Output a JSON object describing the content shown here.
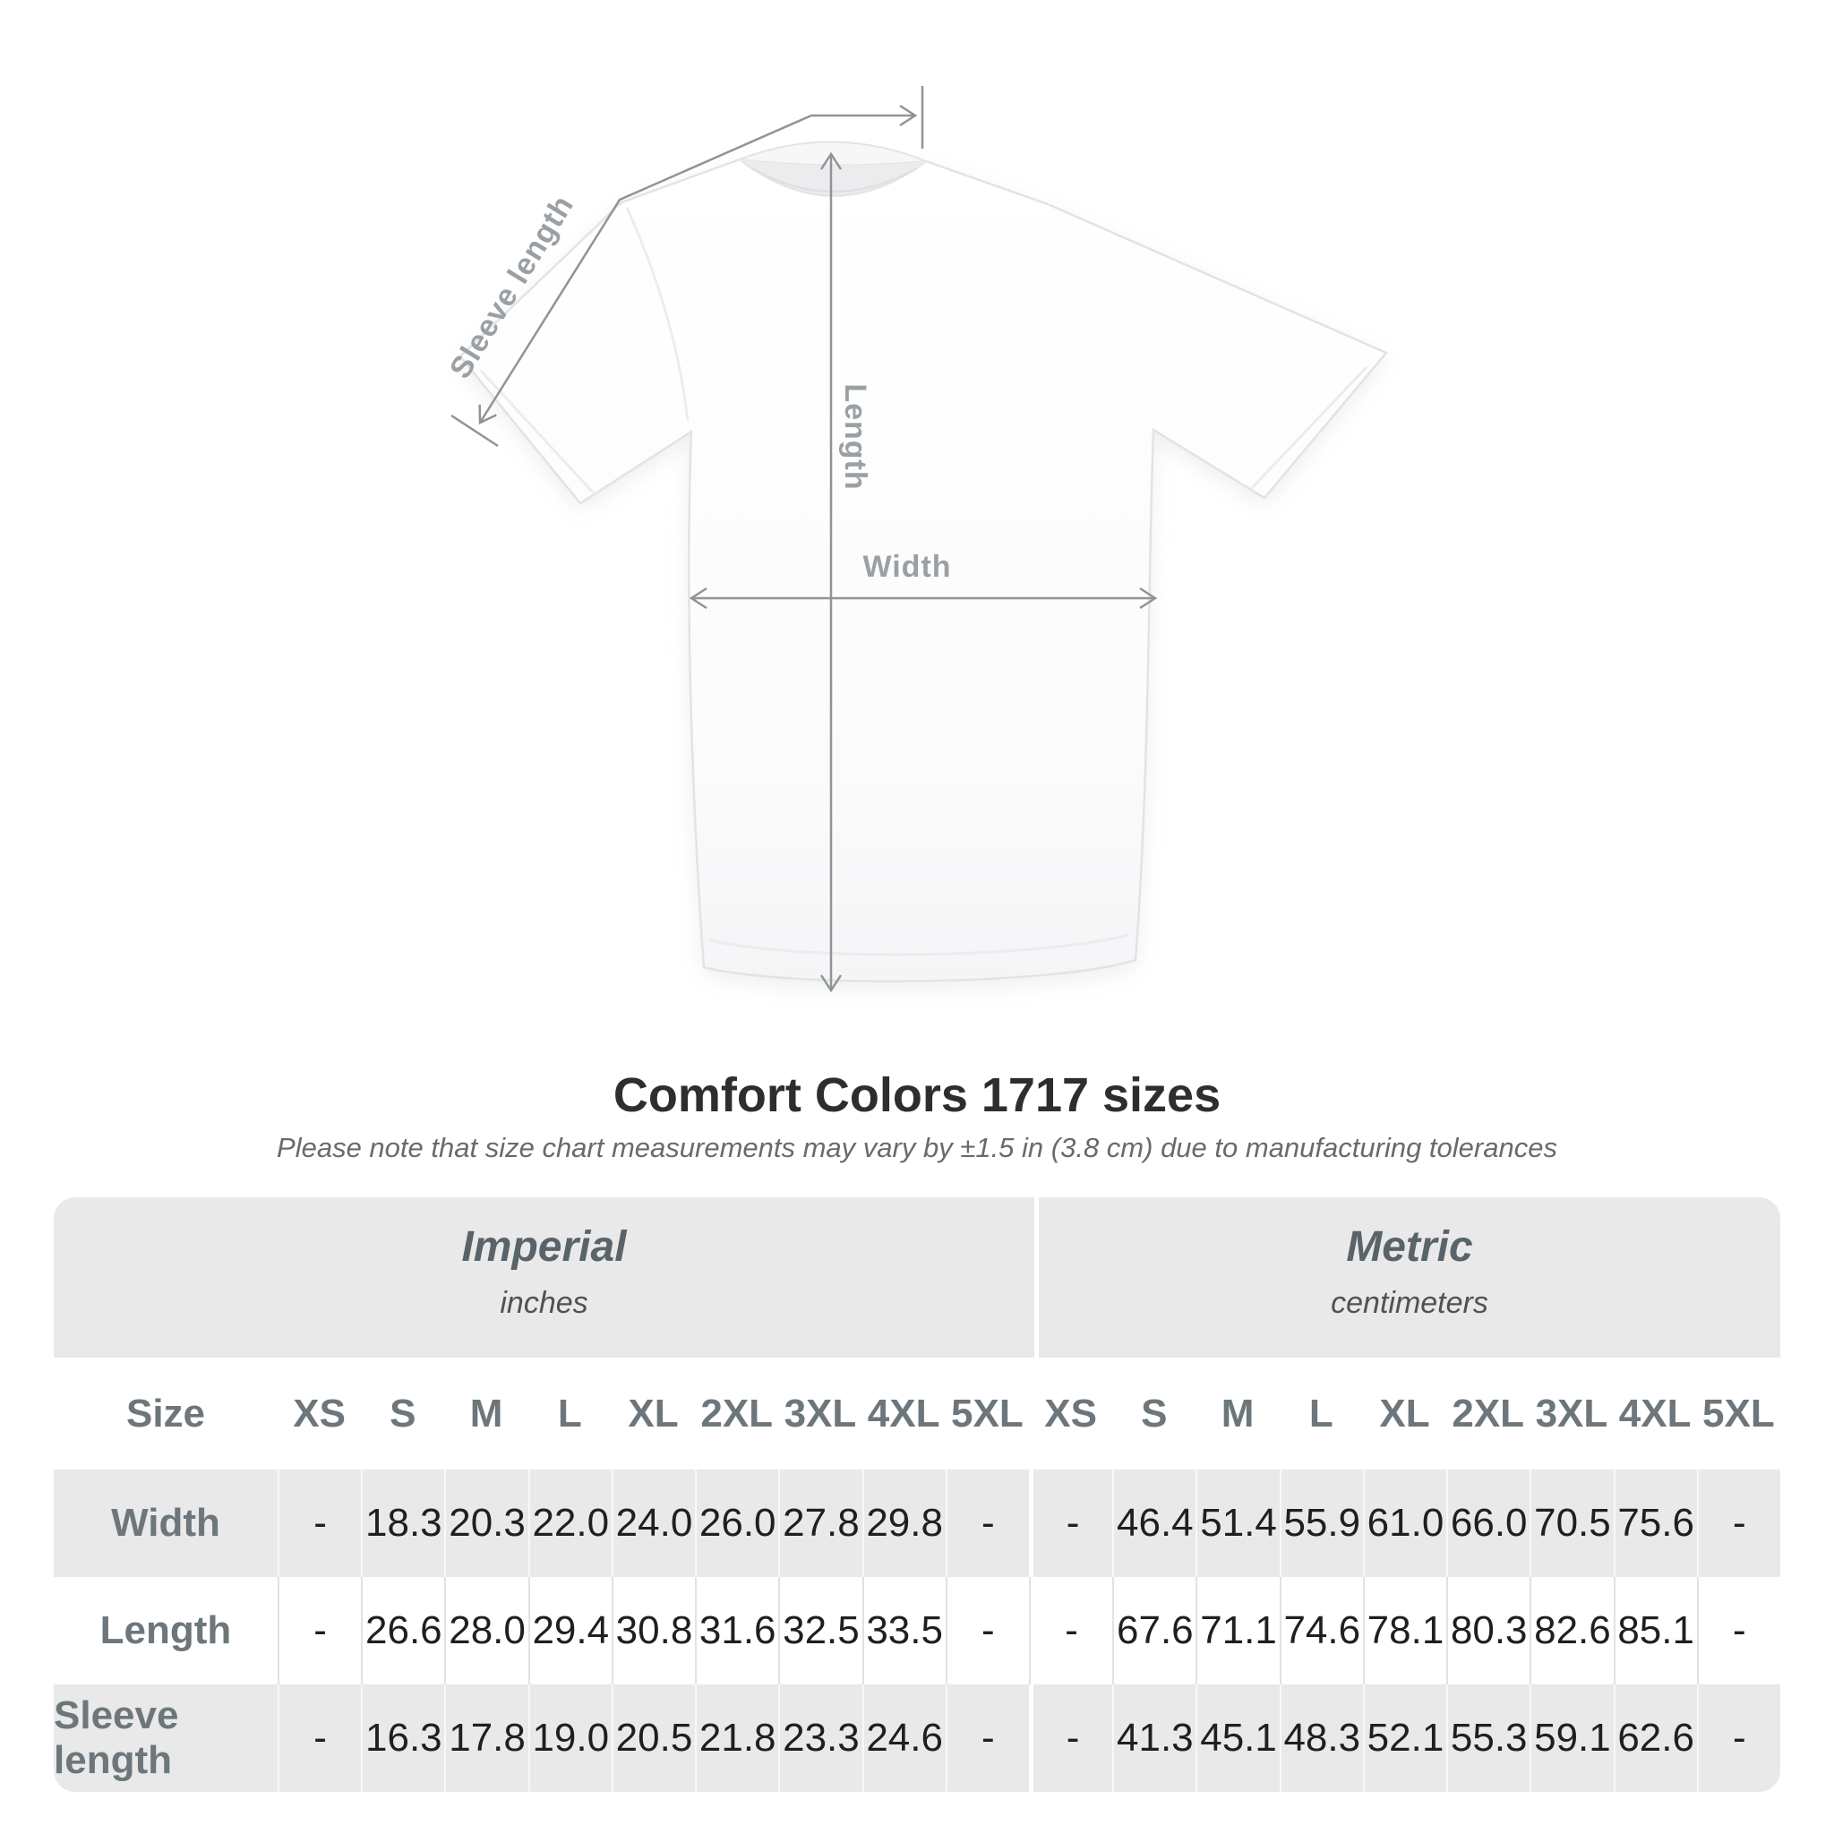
{
  "diagram": {
    "sleeve_label": "Sleeve length",
    "length_label": "Length",
    "width_label": "Width"
  },
  "title": "Comfort Colors 1717 sizes",
  "subtitle": "Please note that size chart measurements may vary by ±1.5 in (3.8 cm) due to manufacturing tolerances",
  "table": {
    "size_header": "Size",
    "unit_groups": [
      {
        "label": "Imperial",
        "sublabel": "inches"
      },
      {
        "label": "Metric",
        "sublabel": "centimeters"
      }
    ],
    "sizes": [
      "XS",
      "S",
      "M",
      "L",
      "XL",
      "2XL",
      "3XL",
      "4XL",
      "5XL"
    ],
    "rows": [
      {
        "label": "Width",
        "imperial": [
          "-",
          "18.3",
          "20.3",
          "22.0",
          "24.0",
          "26.0",
          "27.8",
          "29.8",
          "-"
        ],
        "metric": [
          "-",
          "46.4",
          "51.4",
          "55.9",
          "61.0",
          "66.0",
          "70.5",
          "75.6",
          "-"
        ]
      },
      {
        "label": "Length",
        "imperial": [
          "-",
          "26.6",
          "28.0",
          "29.4",
          "30.8",
          "31.6",
          "32.5",
          "33.5",
          "-"
        ],
        "metric": [
          "-",
          "67.6",
          "71.1",
          "74.6",
          "78.1",
          "80.3",
          "82.6",
          "85.1",
          "-"
        ]
      },
      {
        "label": "Sleeve length",
        "imperial": [
          "-",
          "16.3",
          "17.8",
          "19.0",
          "20.5",
          "21.8",
          "23.3",
          "24.6",
          "-"
        ],
        "metric": [
          "-",
          "41.3",
          "45.1",
          "48.3",
          "52.1",
          "55.3",
          "59.1",
          "62.6",
          "-"
        ]
      }
    ]
  },
  "colors": {
    "band_gray": "#e9e9e9",
    "row_gray": "#e9e9e9",
    "separator_on_white": "#e2e2e2",
    "separator_on_gray": "#f8f8f8",
    "table_header_text": "#6d767b",
    "value_text": "#1e1f20",
    "title_text": "#2e2e2e",
    "subtitle_text": "#6a6a6a",
    "annotation_line": "#8f9496",
    "annotation_text": "#9aa0a3",
    "shirt_outline": "#e3e3e5"
  }
}
